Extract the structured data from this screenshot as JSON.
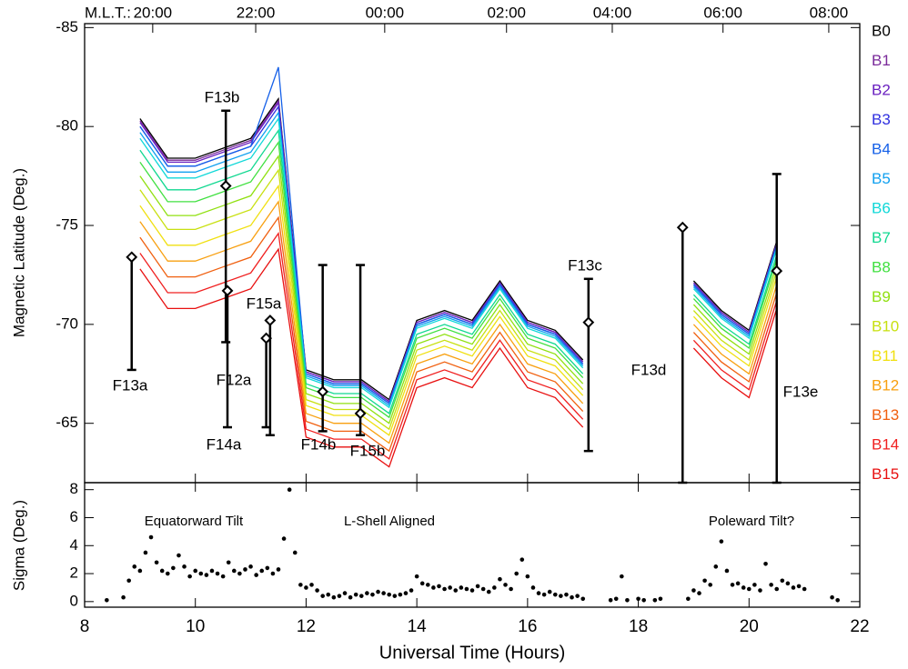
{
  "chart_data": [
    {
      "type": "line",
      "ylabel": "Magnetic Latitude (Deg.)",
      "x2label": "M.L.T.:",
      "xlim": [
        8,
        22
      ],
      "ylim": [
        -62,
        -85.2
      ],
      "yticks": [
        -85,
        -80,
        -75,
        -70,
        -65
      ],
      "x2ticks": [
        {
          "value": 9.23,
          "label": "20:00"
        },
        {
          "value": 11.09,
          "label": "22:00"
        },
        {
          "value": 13.42,
          "label": "00:00"
        },
        {
          "value": 15.62,
          "label": "02:00"
        },
        {
          "value": 17.53,
          "label": "04:00"
        },
        {
          "value": 19.53,
          "label": "06:00"
        },
        {
          "value": 21.44,
          "label": "08:00"
        }
      ],
      "x": [
        9.0,
        9.5,
        10.0,
        10.5,
        11.0,
        11.5,
        12.0,
        12.5,
        13.0,
        13.5,
        14.0,
        14.5,
        15.0,
        15.5,
        16.0,
        16.5,
        17.0,
        17.5,
        18.0,
        18.5,
        19.0,
        19.5,
        20.0,
        20.5
      ],
      "series": [
        {
          "name": "B0",
          "color": "#000000",
          "values": [
            -80.4,
            -78.4,
            -78.4,
            -78.9,
            -79.4,
            -81.4,
            -67.7,
            -67.2,
            -67.2,
            -66.2,
            -70.2,
            -70.7,
            -70.2,
            -72.2,
            -70.2,
            -69.7,
            -68.2,
            null,
            null,
            null,
            -72.2,
            -70.7,
            -69.7,
            -74.2
          ]
        },
        {
          "name": "B1",
          "color": "#7a2a9a",
          "values": [
            -80.3,
            -78.3,
            -78.3,
            -78.8,
            -79.3,
            -81.3,
            -67.6,
            -67.1,
            -67.1,
            -66.1,
            -70.1,
            -70.6,
            -70.1,
            -72.1,
            -70.1,
            -69.6,
            -68.1,
            null,
            null,
            null,
            -72.1,
            -70.6,
            -69.6,
            -74.1
          ]
        },
        {
          "name": "B2",
          "color": "#6a20c0",
          "values": [
            -80.2,
            -78.2,
            -78.2,
            -78.7,
            -79.2,
            -81.2,
            -67.6,
            -67.1,
            -67.1,
            -66.1,
            -70.1,
            -70.6,
            -70.1,
            -72.1,
            -70.1,
            -69.6,
            -68.1,
            null,
            null,
            null,
            -72.1,
            -70.6,
            -69.6,
            -74.1
          ]
        },
        {
          "name": "B3",
          "color": "#3030e0",
          "values": [
            -80,
            -78,
            -78,
            -78.5,
            -79,
            -81,
            -67.5,
            -67,
            -67,
            -66,
            -70,
            -70.5,
            -70,
            -72,
            -70,
            -69.5,
            -68,
            null,
            null,
            null,
            -72,
            -70.5,
            -69.5,
            -74
          ]
        },
        {
          "name": "B4",
          "color": "#1560e8",
          "values": [
            -80,
            -78,
            -78,
            -78.5,
            -79,
            -83,
            -67.5,
            -67,
            -67,
            -66,
            -70,
            -70.5,
            -70,
            -72,
            -70,
            -69.5,
            -68,
            null,
            null,
            null,
            -72,
            -70.5,
            -69.5,
            -74
          ]
        },
        {
          "name": "B5",
          "color": "#10a0f0",
          "values": [
            -79.7,
            -77.7,
            -77.7,
            -78.2,
            -78.7,
            -80.7,
            -67.4,
            -66.9,
            -66.9,
            -65.9,
            -69.9,
            -70.4,
            -69.9,
            -71.9,
            -69.9,
            -69.4,
            -67.9,
            null,
            null,
            null,
            -71.9,
            -70.4,
            -69.4,
            -73.9
          ]
        },
        {
          "name": "B6",
          "color": "#10d8d8",
          "values": [
            -79.4,
            -77.4,
            -77.4,
            -77.9,
            -78.4,
            -80.4,
            -67.3,
            -66.8,
            -66.8,
            -65.8,
            -69.8,
            -70.3,
            -69.8,
            -71.8,
            -69.8,
            -69.3,
            -67.8,
            null,
            null,
            null,
            -71.8,
            -70.3,
            -69.3,
            -73.8
          ]
        },
        {
          "name": "B7",
          "color": "#10d890",
          "values": [
            -78.8,
            -76.8,
            -76.8,
            -77.3,
            -77.8,
            -79.8,
            -67,
            -66.5,
            -66.5,
            -65.5,
            -69.5,
            -70,
            -69.5,
            -71.5,
            -69.5,
            -69,
            -67.5,
            null,
            null,
            null,
            -71.5,
            -70,
            -69,
            -73.5
          ]
        },
        {
          "name": "B8",
          "color": "#40e040",
          "values": [
            -78.2,
            -76.2,
            -76.2,
            -76.7,
            -77.2,
            -79.2,
            -66.8,
            -66.3,
            -66.3,
            -65.3,
            -69.3,
            -69.8,
            -69.3,
            -71.3,
            -69.3,
            -68.8,
            -67.3,
            null,
            null,
            null,
            -71.3,
            -69.8,
            -68.8,
            -73.3
          ]
        },
        {
          "name": "B9",
          "color": "#90e010",
          "values": [
            -77.5,
            -75.5,
            -75.5,
            -76,
            -76.5,
            -78.5,
            -66.5,
            -66,
            -66,
            -65,
            -69,
            -69.5,
            -69,
            -71,
            -69,
            -68.5,
            -67,
            null,
            null,
            null,
            -71,
            -69.5,
            -68.5,
            -73
          ]
        },
        {
          "name": "B10",
          "color": "#c8e010",
          "values": [
            -76.8,
            -74.8,
            -74.8,
            -75.3,
            -75.8,
            -77.8,
            -66.2,
            -65.7,
            -65.7,
            -64.7,
            -68.7,
            -69.2,
            -68.7,
            -70.7,
            -68.7,
            -68.2,
            -66.7,
            null,
            null,
            null,
            -70.7,
            -69.2,
            -68.2,
            -72.7
          ]
        },
        {
          "name": "B11",
          "color": "#f0e010",
          "values": [
            -76,
            -74,
            -74,
            -74.5,
            -75,
            -77,
            -65.9,
            -65.4,
            -65.4,
            -64.4,
            -68.4,
            -68.9,
            -68.4,
            -70.4,
            -68.4,
            -67.9,
            -66.4,
            null,
            null,
            null,
            -70.4,
            -68.9,
            -67.9,
            -72.4
          ]
        },
        {
          "name": "B12",
          "color": "#f8a010",
          "values": [
            -75.2,
            -73.2,
            -73.2,
            -73.7,
            -74.2,
            -76.2,
            -65.5,
            -65,
            -65,
            -64,
            -68,
            -68.5,
            -68,
            -70,
            -68,
            -67.5,
            -66,
            null,
            null,
            null,
            -70,
            -68.5,
            -67.5,
            -72
          ]
        },
        {
          "name": "B13",
          "color": "#f06010",
          "values": [
            -74.4,
            -72.4,
            -72.4,
            -72.9,
            -73.4,
            -75.4,
            -65.1,
            -64.6,
            -64.6,
            -63.6,
            -67.6,
            -68.1,
            -67.6,
            -69.6,
            -67.6,
            -67.1,
            -65.6,
            null,
            null,
            null,
            -69.6,
            -68.1,
            -67.1,
            -71.6
          ]
        },
        {
          "name": "B14",
          "color": "#f02020",
          "values": [
            -73.6,
            -71.6,
            -71.6,
            -72.1,
            -72.6,
            -74.6,
            -64.7,
            -64.2,
            -64.2,
            -63.2,
            -67.2,
            -67.7,
            -67.2,
            -69.2,
            -67.2,
            -66.7,
            -65.2,
            null,
            null,
            null,
            -69.2,
            -67.7,
            -66.7,
            -71.2
          ]
        },
        {
          "name": "B15",
          "color": "#e81010",
          "values": [
            -72.8,
            -70.8,
            -70.8,
            -71.3,
            -71.8,
            -73.8,
            -64.3,
            -63.8,
            -63.8,
            -62.8,
            -66.8,
            -67.3,
            -66.8,
            -68.8,
            -66.8,
            -66.3,
            -64.8,
            null,
            null,
            null,
            -68.8,
            -67.3,
            -66.3,
            -70.8
          ]
        }
      ],
      "markers": [
        {
          "name": "F13a",
          "x": 8.85,
          "value": -73.4,
          "range": [
            -73.4,
            -67.7
          ]
        },
        {
          "name": "F13b",
          "x": 10.55,
          "value": -77.0,
          "range": [
            -80.8,
            -69.1
          ]
        },
        {
          "name": "F14a",
          "x": 10.58,
          "value": -71.7,
          "range": [
            -71.7,
            -64.8
          ]
        },
        {
          "name": "F12a",
          "x": 11.28,
          "value": -69.3,
          "range": [
            -69.3,
            -64.8
          ]
        },
        {
          "name": "F15a",
          "x": 11.35,
          "value": -70.2,
          "range": [
            -70.2,
            -64.4
          ]
        },
        {
          "name": "F14b",
          "x": 12.3,
          "value": -66.6,
          "range": [
            -73.0,
            -64.6
          ]
        },
        {
          "name": "F15b",
          "x": 12.98,
          "value": -65.5,
          "range": [
            -73.0,
            -64.4
          ]
        },
        {
          "name": "F13c",
          "x": 17.1,
          "value": -70.1,
          "range": [
            -72.3,
            -63.6
          ]
        },
        {
          "name": "F13d",
          "x": 18.8,
          "value": -74.9,
          "range": [
            -74.9,
            -62
          ]
        },
        {
          "name": "F13e",
          "x": 20.5,
          "value": -72.7,
          "range": [
            -77.6,
            -62
          ]
        }
      ]
    },
    {
      "type": "scatter",
      "ylabel": "Sigma (Deg.)",
      "xlabel": "Universal Time (Hours)",
      "xlim": [
        8,
        22
      ],
      "xticks": [
        8,
        10,
        12,
        14,
        16,
        18,
        20,
        22
      ],
      "ylim": [
        -0.4,
        8.5
      ],
      "yticks": [
        0,
        2,
        4,
        6,
        8
      ],
      "color": "#000000",
      "annotations": [
        "Equatorward Tilt",
        "L-Shell Aligned",
        "Poleward Tilt?"
      ],
      "x": [
        8.4,
        8.7,
        8.8,
        8.9,
        9.0,
        9.1,
        9.2,
        9.3,
        9.4,
        9.5,
        9.6,
        9.7,
        9.8,
        9.9,
        10.0,
        10.1,
        10.2,
        10.3,
        10.4,
        10.5,
        10.6,
        10.7,
        10.8,
        10.9,
        11.0,
        11.1,
        11.2,
        11.3,
        11.4,
        11.5,
        11.6,
        11.7,
        11.8,
        11.9,
        12.0,
        12.1,
        12.2,
        12.3,
        12.4,
        12.5,
        12.6,
        12.7,
        12.8,
        12.9,
        13.0,
        13.1,
        13.2,
        13.3,
        13.4,
        13.5,
        13.6,
        13.7,
        13.8,
        13.9,
        14.0,
        14.1,
        14.2,
        14.3,
        14.4,
        14.5,
        14.6,
        14.7,
        14.8,
        14.9,
        15.0,
        15.1,
        15.2,
        15.3,
        15.4,
        15.5,
        15.6,
        15.7,
        15.8,
        15.9,
        16.0,
        16.1,
        16.2,
        16.3,
        16.4,
        16.5,
        16.6,
        16.7,
        16.8,
        16.9,
        17.0,
        17.5,
        17.6,
        17.7,
        17.8,
        18.0,
        18.1,
        18.3,
        18.4,
        18.9,
        19.0,
        19.1,
        19.2,
        19.3,
        19.4,
        19.5,
        19.6,
        19.7,
        19.8,
        19.9,
        20.0,
        20.1,
        20.2,
        20.3,
        20.4,
        20.5,
        20.6,
        20.7,
        20.8,
        20.9,
        21.0,
        21.5,
        21.6
      ],
      "values": [
        0.1,
        0.3,
        1.5,
        2.5,
        2.2,
        3.5,
        4.6,
        2.8,
        2.2,
        2.0,
        2.4,
        3.3,
        2.5,
        1.8,
        2.2,
        2.0,
        1.9,
        2.2,
        2.0,
        1.8,
        2.8,
        2.2,
        2.0,
        2.3,
        2.5,
        1.9,
        2.2,
        2.4,
        2.0,
        2.3,
        4.5,
        8.0,
        3.5,
        1.2,
        1.0,
        1.2,
        0.8,
        0.4,
        0.5,
        0.3,
        0.4,
        0.6,
        0.3,
        0.5,
        0.4,
        0.6,
        0.5,
        0.7,
        0.6,
        0.5,
        0.4,
        0.5,
        0.6,
        0.8,
        1.8,
        1.3,
        1.2,
        1.0,
        1.1,
        0.9,
        1.0,
        0.8,
        1.0,
        0.9,
        0.8,
        1.1,
        0.9,
        0.7,
        1.0,
        1.6,
        1.2,
        0.9,
        2.0,
        3.0,
        1.8,
        1.0,
        0.6,
        0.5,
        0.7,
        0.5,
        0.4,
        0.5,
        0.3,
        0.4,
        0.2,
        0.1,
        0.2,
        1.8,
        0.1,
        0.2,
        0.1,
        0.1,
        0.2,
        0.2,
        0.8,
        0.6,
        1.5,
        1.2,
        2.5,
        4.3,
        2.2,
        1.2,
        1.3,
        1.0,
        0.9,
        1.2,
        0.8,
        2.7,
        1.2,
        0.9,
        1.5,
        1.3,
        1.0,
        1.1,
        0.9,
        0.3,
        0.1
      ]
    }
  ]
}
